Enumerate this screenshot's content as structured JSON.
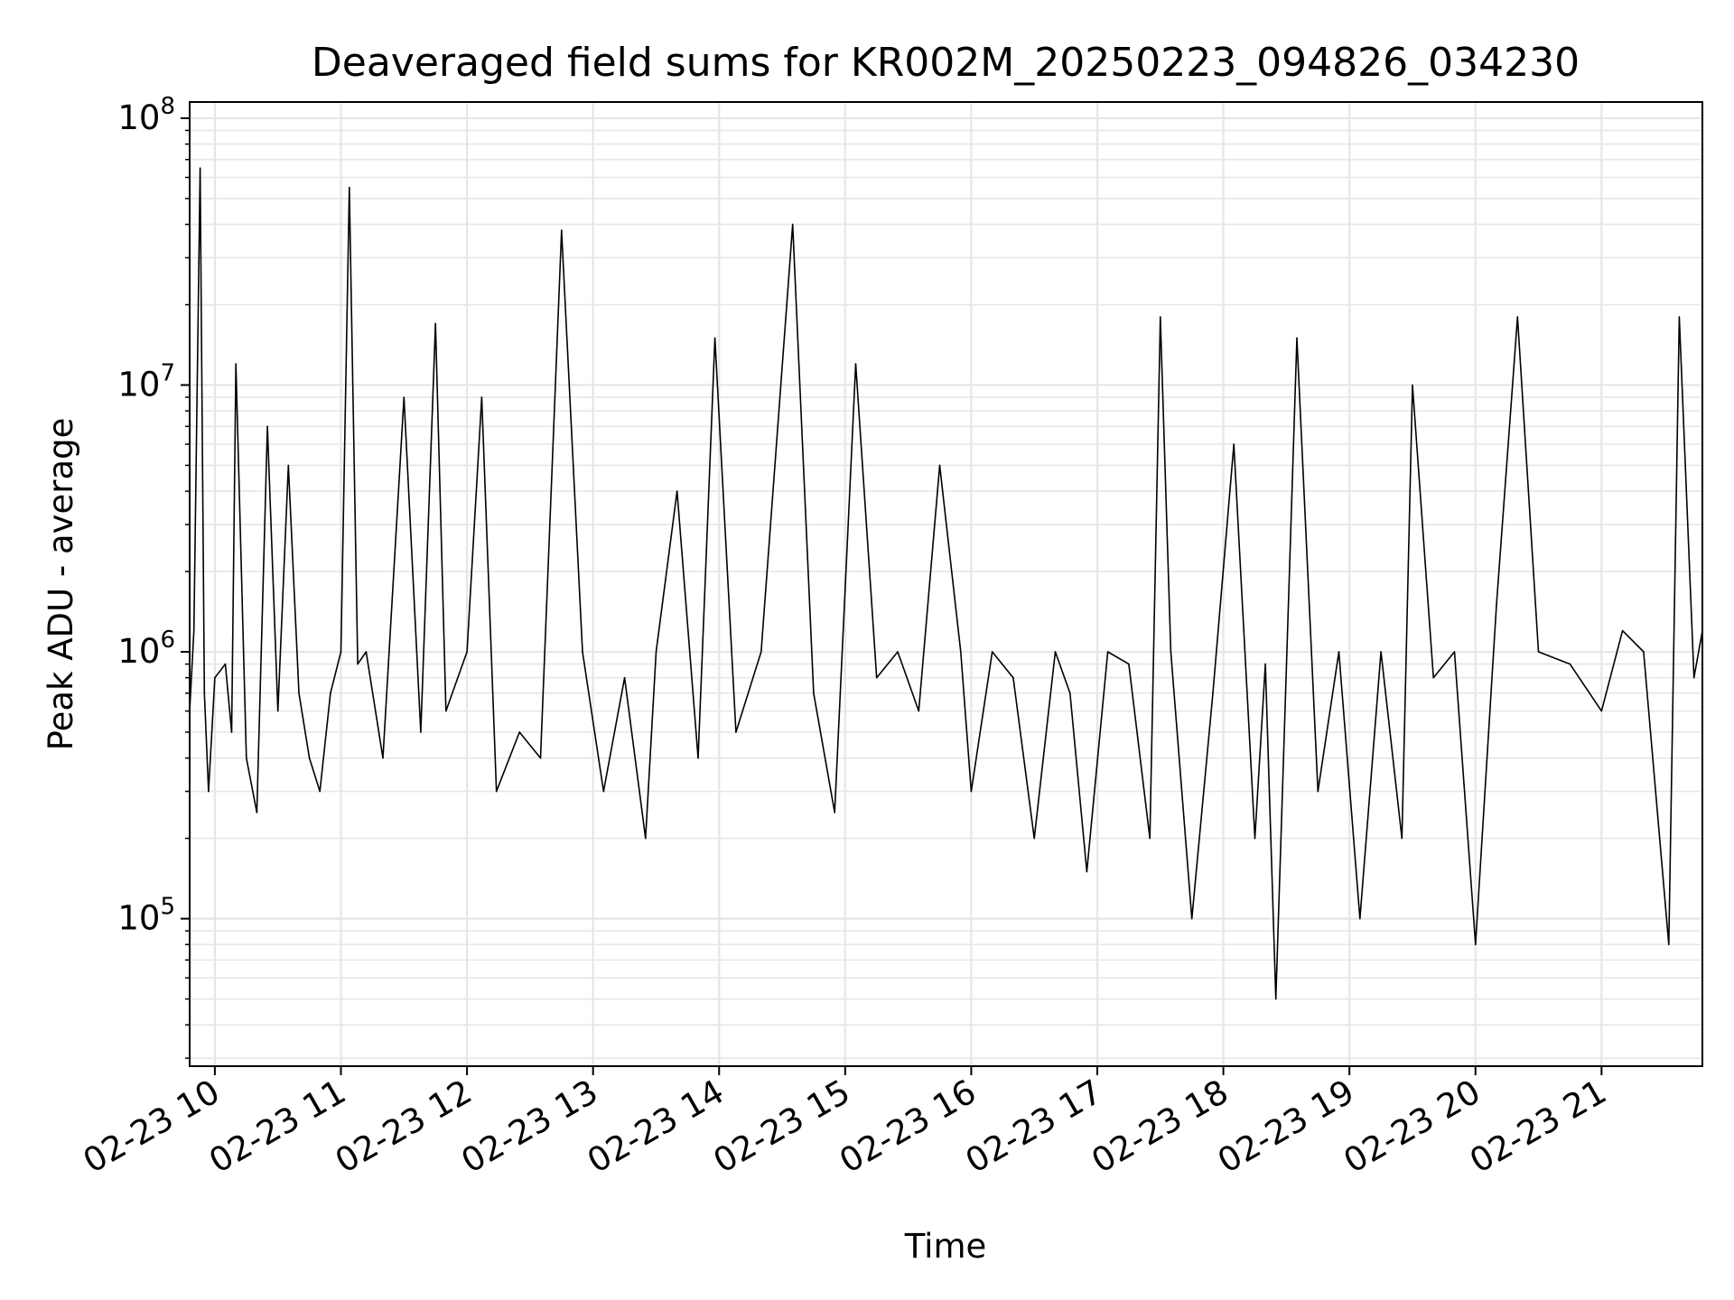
{
  "chart_data": {
    "type": "line",
    "title": "Deaveraged field sums for KR002M_20250223_094826_034230",
    "xlabel": "Time",
    "ylabel": "Peak ADU - average",
    "yscale": "log",
    "ylim": [
      28000,
      115000000
    ],
    "xlim": [
      "2025-02-23 09:48",
      "2025-02-23 21:48"
    ],
    "grid": true,
    "line_color": "#000000",
    "grid_color": "#e6e6e6",
    "x_ticks": [
      "02-23 10",
      "02-23 11",
      "02-23 12",
      "02-23 13",
      "02-23 14",
      "02-23 15",
      "02-23 16",
      "02-23 17",
      "02-23 18",
      "02-23 19",
      "02-23 20",
      "02-23 21"
    ],
    "y_ticks": [
      {
        "value": 100000,
        "base": "10",
        "exp": "5"
      },
      {
        "value": 1000000,
        "base": "10",
        "exp": "6"
      },
      {
        "value": 10000000,
        "base": "10",
        "exp": "7"
      },
      {
        "value": 100000000,
        "base": "10",
        "exp": "8"
      }
    ],
    "series": [
      {
        "x": [
          "2025-02-23 09:48",
          "2025-02-23 09:50",
          "2025-02-23 09:53",
          "2025-02-23 09:55",
          "2025-02-23 09:57",
          "2025-02-23 10:00",
          "2025-02-23 10:05",
          "2025-02-23 10:08",
          "2025-02-23 10:10",
          "2025-02-23 10:15",
          "2025-02-23 10:20",
          "2025-02-23 10:25",
          "2025-02-23 10:30",
          "2025-02-23 10:35",
          "2025-02-23 10:40",
          "2025-02-23 10:45",
          "2025-02-23 10:50",
          "2025-02-23 10:55",
          "2025-02-23 11:00",
          "2025-02-23 11:04",
          "2025-02-23 11:08",
          "2025-02-23 11:12",
          "2025-02-23 11:20",
          "2025-02-23 11:30",
          "2025-02-23 11:38",
          "2025-02-23 11:45",
          "2025-02-23 11:50",
          "2025-02-23 12:00",
          "2025-02-23 12:07",
          "2025-02-23 12:14",
          "2025-02-23 12:25",
          "2025-02-23 12:35",
          "2025-02-23 12:45",
          "2025-02-23 12:55",
          "2025-02-23 13:05",
          "2025-02-23 13:15",
          "2025-02-23 13:25",
          "2025-02-23 13:30",
          "2025-02-23 13:40",
          "2025-02-23 13:50",
          "2025-02-23 13:58",
          "2025-02-23 14:08",
          "2025-02-23 14:20",
          "2025-02-23 14:35",
          "2025-02-23 14:45",
          "2025-02-23 14:55",
          "2025-02-23 15:05",
          "2025-02-23 15:15",
          "2025-02-23 15:25",
          "2025-02-23 15:35",
          "2025-02-23 15:45",
          "2025-02-23 15:55",
          "2025-02-23 16:00",
          "2025-02-23 16:10",
          "2025-02-23 16:20",
          "2025-02-23 16:30",
          "2025-02-23 16:40",
          "2025-02-23 16:47",
          "2025-02-23 16:55",
          "2025-02-23 17:05",
          "2025-02-23 17:15",
          "2025-02-23 17:25",
          "2025-02-23 17:30",
          "2025-02-23 17:35",
          "2025-02-23 17:45",
          "2025-02-23 17:55",
          "2025-02-23 18:05",
          "2025-02-23 18:15",
          "2025-02-23 18:20",
          "2025-02-23 18:25",
          "2025-02-23 18:35",
          "2025-02-23 18:45",
          "2025-02-23 18:55",
          "2025-02-23 19:05",
          "2025-02-23 19:15",
          "2025-02-23 19:25",
          "2025-02-23 19:30",
          "2025-02-23 19:40",
          "2025-02-23 19:50",
          "2025-02-23 20:00",
          "2025-02-23 20:10",
          "2025-02-23 20:20",
          "2025-02-23 20:30",
          "2025-02-23 20:45",
          "2025-02-23 21:00",
          "2025-02-23 21:10",
          "2025-02-23 21:20",
          "2025-02-23 21:32",
          "2025-02-23 21:37",
          "2025-02-23 21:44",
          "2025-02-23 21:48"
        ],
        "y": [
          600000,
          1200000,
          65000000,
          700000,
          300000,
          800000,
          900000,
          500000,
          12000000,
          400000,
          250000,
          7000000,
          600000,
          5000000,
          700000,
          400000,
          300000,
          700000,
          1000000,
          55000000,
          900000,
          1000000,
          400000,
          9000000,
          500000,
          17000000,
          600000,
          1000000,
          9000000,
          300000,
          500000,
          400000,
          38000000,
          1000000,
          300000,
          800000,
          200000,
          1000000,
          4000000,
          400000,
          15000000,
          500000,
          1000000,
          40000000,
          700000,
          250000,
          12000000,
          800000,
          1000000,
          600000,
          5000000,
          1000000,
          300000,
          1000000,
          800000,
          200000,
          1000000,
          700000,
          150000,
          1000000,
          900000,
          200000,
          18000000,
          1000000,
          100000,
          700000,
          6000000,
          200000,
          900000,
          50000,
          15000000,
          300000,
          1000000,
          100000,
          1000000,
          200000,
          10000000,
          800000,
          1000000,
          80000,
          1500000,
          18000000,
          1000000,
          900000,
          600000,
          1200000,
          1000000,
          80000,
          18000000,
          800000,
          1200000
        ]
      }
    ]
  }
}
